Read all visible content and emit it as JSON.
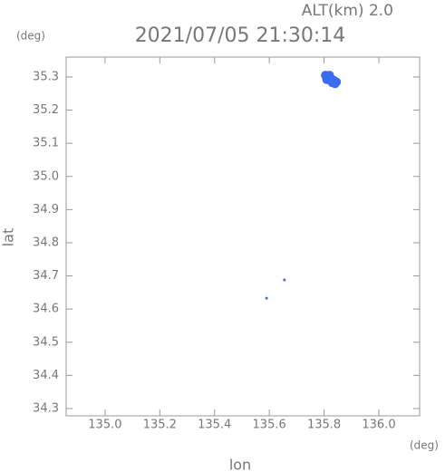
{
  "chart_data": {
    "type": "scatter",
    "title": "2021/07/05 21:30:14",
    "annotation": "ALT(km) 2.0",
    "x_label": "lon",
    "y_label": "lat",
    "x_unit": "(deg)",
    "y_unit": "(deg)",
    "x": [
      135.805,
      135.815,
      135.825,
      135.835,
      135.845,
      135.81,
      135.83,
      135.84,
      135.82,
      135.655,
      135.59
    ],
    "y": [
      35.305,
      35.3,
      35.295,
      35.29,
      35.285,
      35.292,
      35.283,
      35.28,
      35.305,
      34.688,
      34.633
    ],
    "color": "#3a6cf0",
    "xlim": [
      134.858,
      136.149
    ],
    "ylim": [
      34.278,
      35.36
    ],
    "xticks": [
      {
        "value": 135.0,
        "label": "135.0"
      },
      135.2,
      135.4,
      135.6,
      135.8,
      {
        "value": 136.0,
        "label": "136.0"
      }
    ],
    "yticks": [
      34.3,
      34.4,
      34.5,
      34.6,
      34.7,
      34.8,
      34.9,
      {
        "value": 35.0,
        "label": "35.0"
      },
      35.1,
      35.2,
      35.3
    ]
  }
}
